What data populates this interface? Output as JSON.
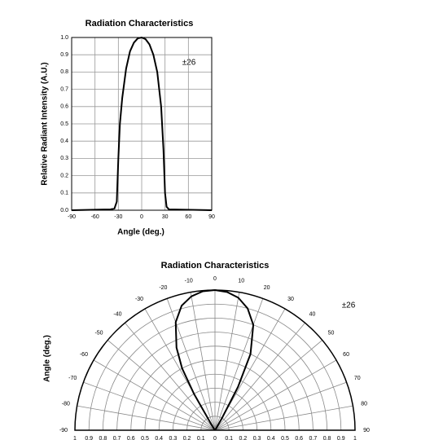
{
  "chart_data": [
    {
      "type": "line",
      "title": "Radiation Characteristics",
      "x_label": "Angle (deg.)",
      "y_label": "Relative Radiant Intensity (A.U.)",
      "annotation": "±26",
      "x": [
        -90,
        -40,
        -35,
        -32,
        -30,
        -28,
        -25,
        -20,
        -15,
        -10,
        -5,
        0,
        5,
        10,
        15,
        20,
        25,
        28,
        30,
        32,
        35,
        90
      ],
      "values": [
        0,
        0.005,
        0.01,
        0.05,
        0.3,
        0.5,
        0.65,
        0.82,
        0.92,
        0.97,
        0.995,
        1,
        0.99,
        0.96,
        0.9,
        0.8,
        0.6,
        0.35,
        0.1,
        0.02,
        0.005,
        0
      ],
      "color": "#000000",
      "xlim": [
        -90,
        90
      ],
      "xticks": [
        -90,
        -60,
        -30,
        0,
        30,
        60,
        90
      ],
      "ylim": [
        0,
        1
      ],
      "yticks": [
        {
          "value": 0,
          "label": "0.0"
        },
        0.1,
        0.2,
        0.3,
        0.4,
        0.5,
        0.6,
        0.7,
        0.8,
        0.9,
        {
          "value": 1,
          "label": "1.0"
        }
      ],
      "grid": true
    },
    {
      "type": "polar",
      "title": "Radiation Characteristics",
      "y_label": "Angle (deg.)",
      "annotation": "±26",
      "x": [
        -90,
        -40,
        -35,
        -32,
        -30,
        -28,
        -25,
        -20,
        -15,
        -10,
        -5,
        0,
        5,
        10,
        15,
        20,
        25,
        28,
        30,
        32,
        35,
        90
      ],
      "values": [
        0,
        0.005,
        0.01,
        0.05,
        0.3,
        0.5,
        0.65,
        0.82,
        0.92,
        0.97,
        0.995,
        1,
        0.99,
        0.96,
        0.9,
        0.8,
        0.6,
        0.35,
        0.1,
        0.02,
        0.005,
        0
      ],
      "color": "#000000",
      "thetalim": [
        -90,
        90
      ],
      "thetaticks": [
        -90,
        -80,
        -70,
        -60,
        -50,
        -40,
        -30,
        -20,
        -10,
        0,
        10,
        20,
        30,
        40,
        50,
        60,
        70,
        80,
        90
      ],
      "rlim": [
        0,
        1
      ],
      "rticks": [
        0,
        0.1,
        0.2,
        0.3,
        0.4,
        0.5,
        0.6,
        0.7,
        0.8,
        0.9,
        1
      ],
      "grid": true
    }
  ]
}
